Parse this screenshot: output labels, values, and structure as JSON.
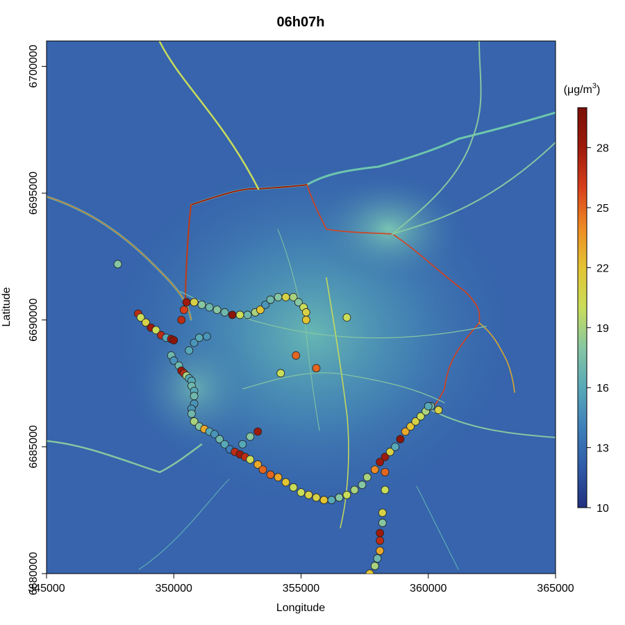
{
  "chart_data": {
    "type": "scatter",
    "title": "06h07h",
    "xlabel": "Longitude",
    "ylabel": "Latitude",
    "xlim": [
      345000,
      365000
    ],
    "ylim": [
      6680000,
      6701000
    ],
    "x_ticks": [
      345000,
      350000,
      355000,
      360000,
      365000
    ],
    "x_tick_labels": [
      "345000",
      "350000",
      "355000",
      "360000",
      "365000"
    ],
    "y_ticks": [
      6680000,
      6685000,
      6690000,
      6695000,
      6700000
    ],
    "y_tick_labels": [
      "6680000",
      "6685000",
      "6690000",
      "6695000",
      "6700000"
    ],
    "background": "modelled concentration raster over road network",
    "colorbar": {
      "unit_prefix": "(μg/m",
      "unit_superscript": "3",
      "unit_suffix": ")",
      "min": 10,
      "max": 30,
      "ticks": [
        10,
        13,
        16,
        19,
        22,
        25,
        28
      ],
      "tick_labels": [
        "10",
        "13",
        "16",
        "19",
        "22",
        "25",
        "28"
      ],
      "colors": [
        "#232f7e",
        "#2f5aa8",
        "#3d7fba",
        "#57a9b8",
        "#86c6a2",
        "#c9dd5a",
        "#e3c432",
        "#ee8b24",
        "#d8401b",
        "#9e1a0c",
        "#7a0f07"
      ]
    },
    "series": [
      {
        "name": "",
        "points": [
          [
            347800,
            6692200,
            18
          ],
          [
            348600,
            6690250,
            27
          ],
          [
            348700,
            6690100,
            20
          ],
          [
            348900,
            6689900,
            21
          ],
          [
            349100,
            6689700,
            28
          ],
          [
            349300,
            6689600,
            20
          ],
          [
            349500,
            6689400,
            27
          ],
          [
            349700,
            6689300,
            16
          ],
          [
            349900,
            6689250,
            28
          ],
          [
            350000,
            6689200,
            29
          ],
          [
            349900,
            6688600,
            17
          ],
          [
            350000,
            6688400,
            15
          ],
          [
            350200,
            6688200,
            17
          ],
          [
            350300,
            6688000,
            28
          ],
          [
            350400,
            6687900,
            27
          ],
          [
            350500,
            6687800,
            19
          ],
          [
            350600,
            6687700,
            16
          ],
          [
            350700,
            6687600,
            16
          ],
          [
            350700,
            6687400,
            17
          ],
          [
            350800,
            6687200,
            16
          ],
          [
            350800,
            6687000,
            17
          ],
          [
            350800,
            6686700,
            15
          ],
          [
            350700,
            6686500,
            15
          ],
          [
            350700,
            6686300,
            17
          ],
          [
            350800,
            6686000,
            19
          ],
          [
            351000,
            6685800,
            18
          ],
          [
            351200,
            6685700,
            23
          ],
          [
            351400,
            6685600,
            16
          ],
          [
            351600,
            6685500,
            15
          ],
          [
            351800,
            6685300,
            17
          ],
          [
            352000,
            6685100,
            16
          ],
          [
            352200,
            6684900,
            14
          ],
          [
            352400,
            6684800,
            27
          ],
          [
            352600,
            6684700,
            28
          ],
          [
            352800,
            6684600,
            27
          ],
          [
            353000,
            6684500,
            20
          ],
          [
            353300,
            6684300,
            23
          ],
          [
            353500,
            6684100,
            25
          ],
          [
            353800,
            6683900,
            25
          ],
          [
            354100,
            6683800,
            23
          ],
          [
            354400,
            6683600,
            22
          ],
          [
            354700,
            6683400,
            20
          ],
          [
            355000,
            6683200,
            20
          ],
          [
            355300,
            6683100,
            21
          ],
          [
            355600,
            6683000,
            21
          ],
          [
            355900,
            6682900,
            22
          ],
          [
            356200,
            6682900,
            16
          ],
          [
            356500,
            6683000,
            18
          ],
          [
            356800,
            6683100,
            20
          ],
          [
            357100,
            6683300,
            19
          ],
          [
            357400,
            6683500,
            18
          ],
          [
            357600,
            6683800,
            19
          ],
          [
            357900,
            6684100,
            24
          ],
          [
            358100,
            6684400,
            28
          ],
          [
            358300,
            6684600,
            28
          ],
          [
            358500,
            6684800,
            21
          ],
          [
            358700,
            6685000,
            16
          ],
          [
            358900,
            6685300,
            29
          ],
          [
            359100,
            6685600,
            23
          ],
          [
            359300,
            6685800,
            22
          ],
          [
            359500,
            6686000,
            21
          ],
          [
            359700,
            6686200,
            20
          ],
          [
            359900,
            6686400,
            19
          ],
          [
            360100,
            6686600,
            17
          ],
          [
            360400,
            6686450,
            21
          ],
          [
            360000,
            6686600,
            16
          ],
          [
            358300,
            6684000,
            25
          ],
          [
            358300,
            6683300,
            20
          ],
          [
            358200,
            6682400,
            21
          ],
          [
            358200,
            6682000,
            18
          ],
          [
            358100,
            6681600,
            28
          ],
          [
            358100,
            6681300,
            27
          ],
          [
            358100,
            6680900,
            23
          ],
          [
            358000,
            6680600,
            17
          ],
          [
            357900,
            6680300,
            19
          ],
          [
            357700,
            6680000,
            22
          ],
          [
            350300,
            6690000,
            27
          ],
          [
            350400,
            6690400,
            26
          ],
          [
            350500,
            6690700,
            28
          ],
          [
            350800,
            6690700,
            21
          ],
          [
            351100,
            6690600,
            18
          ],
          [
            351400,
            6690500,
            17
          ],
          [
            351700,
            6690400,
            18
          ],
          [
            352000,
            6690300,
            17
          ],
          [
            352300,
            6690200,
            29
          ],
          [
            352600,
            6690200,
            20
          ],
          [
            352900,
            6690200,
            17
          ],
          [
            353200,
            6690300,
            19
          ],
          [
            353400,
            6690400,
            22
          ],
          [
            353600,
            6690600,
            15
          ],
          [
            353800,
            6690800,
            17
          ],
          [
            354100,
            6690900,
            18
          ],
          [
            354400,
            6690900,
            21
          ],
          [
            354700,
            6690900,
            19
          ],
          [
            354900,
            6690700,
            18
          ],
          [
            355100,
            6690500,
            20
          ],
          [
            355200,
            6690300,
            21
          ],
          [
            355200,
            6690000,
            22
          ],
          [
            350600,
            6688800,
            16
          ],
          [
            350800,
            6689100,
            15
          ],
          [
            351000,
            6689300,
            16
          ],
          [
            351300,
            6689350,
            15
          ],
          [
            353300,
            6685600,
            28
          ],
          [
            353000,
            6685400,
            18
          ],
          [
            352700,
            6685100,
            16
          ],
          [
            354800,
            6688600,
            25
          ],
          [
            355600,
            6688100,
            25
          ],
          [
            354200,
            6687900,
            20
          ],
          [
            356800,
            6690100,
            20
          ]
        ]
      }
    ]
  }
}
